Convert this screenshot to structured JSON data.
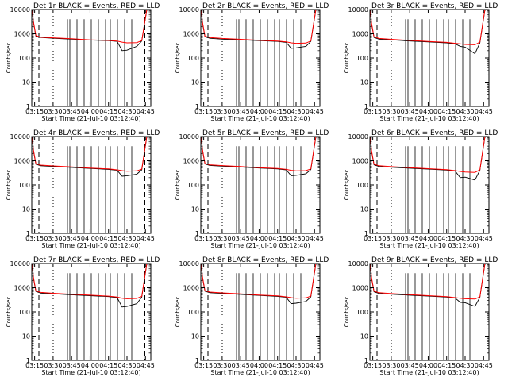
{
  "figure": {
    "background": "#ffffff",
    "axis_color": "#000000"
  },
  "chart_data": [
    {
      "type": "line",
      "title": "Det 1r BLACK = Events, RED = LLD",
      "xlabel": "Start Time (21-Jul-10 03:12:40)",
      "ylabel": "Counts/sec",
      "yscale": "log",
      "ylim": [
        1,
        10000
      ],
      "xlim": [
        "03:12:40",
        "04:49:20"
      ],
      "xticks": [
        "03:15",
        "03:30",
        "03:45",
        "04:00",
        "04:15",
        "04:30",
        "04:45"
      ],
      "yticks": [
        "1",
        "10",
        "100",
        "1000",
        "10000"
      ],
      "series": [
        {
          "color": "#000000",
          "x": [
            "03:13",
            "03:14",
            "03:16",
            "03:20",
            "03:30",
            "03:45",
            "04:00",
            "04:15",
            "04:22",
            "04:26",
            "04:30",
            "04:38",
            "04:42",
            "04:46",
            "04:47"
          ],
          "y": [
            9000,
            3000,
            800,
            700,
            650,
            600,
            550,
            520,
            480,
            200,
            210,
            300,
            500,
            9000,
            10000
          ]
        },
        {
          "color": "#ff0000",
          "x": [
            "03:13",
            "03:14",
            "03:16",
            "03:20",
            "03:30",
            "03:45",
            "04:00",
            "04:15",
            "04:22",
            "04:26",
            "04:30",
            "04:38",
            "04:42",
            "04:46",
            "04:47"
          ],
          "y": [
            9500,
            3200,
            850,
            720,
            680,
            620,
            560,
            530,
            500,
            450,
            420,
            430,
            520,
            9500,
            10000
          ]
        }
      ]
    },
    {
      "type": "line",
      "title": "Det 2r BLACK = Events, RED = LLD",
      "xlabel": "Start Time (21-Jul-10 03:12:40)",
      "ylabel": "Counts/sec",
      "yscale": "log",
      "ylim": [
        1,
        10000
      ],
      "xlim": [
        "03:12:40",
        "04:49:20"
      ],
      "xticks": [
        "03:15",
        "03:30",
        "03:45",
        "04:00",
        "04:15",
        "04:30",
        "04:45"
      ],
      "yticks": [
        "1",
        "10",
        "100",
        "1000",
        "10000"
      ],
      "series": [
        {
          "color": "#000000",
          "x": [
            "03:13",
            "03:14",
            "03:16",
            "03:20",
            "03:30",
            "03:45",
            "04:00",
            "04:15",
            "04:22",
            "04:26",
            "04:30",
            "04:38",
            "04:42",
            "04:46",
            "04:47"
          ],
          "y": [
            9000,
            2800,
            750,
            650,
            600,
            560,
            520,
            480,
            440,
            250,
            260,
            300,
            480,
            9000,
            10000
          ]
        },
        {
          "color": "#ff0000",
          "x": [
            "03:13",
            "03:14",
            "03:16",
            "03:20",
            "03:30",
            "03:45",
            "04:00",
            "04:15",
            "04:22",
            "04:26",
            "04:30",
            "04:38",
            "04:42",
            "04:46",
            "04:47"
          ],
          "y": [
            9500,
            3000,
            800,
            700,
            640,
            590,
            540,
            500,
            460,
            420,
            400,
            410,
            500,
            9500,
            10000
          ]
        }
      ]
    },
    {
      "type": "line",
      "title": "Det 3r BLACK = Events, RED = LLD",
      "xlabel": "Start Time (21-Jul-10 03:12:40)",
      "ylabel": "Counts/sec",
      "yscale": "log",
      "ylim": [
        1,
        10000
      ],
      "xlim": [
        "03:12:40",
        "04:49:20"
      ],
      "xticks": [
        "03:15",
        "03:30",
        "03:45",
        "04:00",
        "04:15",
        "04:30",
        "04:45"
      ],
      "yticks": [
        "1",
        "10",
        "100",
        "1000",
        "10000"
      ],
      "series": [
        {
          "color": "#000000",
          "x": [
            "03:13",
            "03:14",
            "03:16",
            "03:20",
            "03:30",
            "03:45",
            "04:00",
            "04:15",
            "04:22",
            "04:26",
            "04:30",
            "04:38",
            "04:42",
            "04:46",
            "04:47"
          ],
          "y": [
            9000,
            2500,
            700,
            600,
            560,
            500,
            460,
            420,
            380,
            300,
            280,
            150,
            420,
            9000,
            10000
          ]
        },
        {
          "color": "#ff0000",
          "x": [
            "03:13",
            "03:14",
            "03:16",
            "03:20",
            "03:30",
            "03:45",
            "04:00",
            "04:15",
            "04:22",
            "04:26",
            "04:30",
            "04:38",
            "04:42",
            "04:46",
            "04:47"
          ],
          "y": [
            9500,
            2700,
            750,
            640,
            590,
            530,
            480,
            440,
            400,
            380,
            360,
            350,
            450,
            9500,
            10000
          ]
        }
      ]
    },
    {
      "type": "line",
      "title": "Det 4r BLACK = Events, RED = LLD",
      "xlabel": "Start Time (21-Jul-10 03:12:40)",
      "ylabel": "Counts/sec",
      "yscale": "log",
      "ylim": [
        1,
        10000
      ],
      "xlim": [
        "03:12:40",
        "04:49:20"
      ],
      "xticks": [
        "03:15",
        "03:30",
        "03:45",
        "04:00",
        "04:15",
        "04:30",
        "04:45"
      ],
      "yticks": [
        "1",
        "10",
        "100",
        "1000",
        "10000"
      ],
      "series": [
        {
          "color": "#000000",
          "x": [
            "03:13",
            "03:14",
            "03:16",
            "03:20",
            "03:30",
            "03:45",
            "04:00",
            "04:15",
            "04:22",
            "04:26",
            "04:30",
            "04:38",
            "04:42",
            "04:46",
            "04:47"
          ],
          "y": [
            9000,
            2600,
            720,
            620,
            580,
            530,
            480,
            440,
            400,
            230,
            240,
            280,
            420,
            9000,
            10000
          ]
        },
        {
          "color": "#ff0000",
          "x": [
            "03:13",
            "03:14",
            "03:16",
            "03:20",
            "03:30",
            "03:45",
            "04:00",
            "04:15",
            "04:22",
            "04:26",
            "04:30",
            "04:38",
            "04:42",
            "04:46",
            "04:47"
          ],
          "y": [
            9500,
            2800,
            760,
            660,
            610,
            560,
            500,
            460,
            420,
            390,
            370,
            380,
            450,
            9500,
            10000
          ]
        }
      ]
    },
    {
      "type": "line",
      "title": "Det 5r BLACK = Events, RED = LLD",
      "xlabel": "Start Time (21-Jul-10 03:12:40)",
      "ylabel": "Counts/sec",
      "yscale": "log",
      "ylim": [
        1,
        10000
      ],
      "xlim": [
        "03:12:40",
        "04:49:20"
      ],
      "xticks": [
        "03:15",
        "03:30",
        "03:45",
        "04:00",
        "04:15",
        "04:30",
        "04:45"
      ],
      "yticks": [
        "1",
        "10",
        "100",
        "1000",
        "10000"
      ],
      "series": [
        {
          "color": "#000000",
          "x": [
            "03:13",
            "03:14",
            "03:16",
            "03:20",
            "03:30",
            "03:45",
            "04:00",
            "04:15",
            "04:22",
            "04:26",
            "04:30",
            "04:38",
            "04:42",
            "04:46",
            "04:47"
          ],
          "y": [
            9000,
            2700,
            740,
            640,
            600,
            550,
            500,
            460,
            420,
            240,
            250,
            290,
            430,
            9000,
            10000
          ]
        },
        {
          "color": "#ff0000",
          "x": [
            "03:13",
            "03:14",
            "03:16",
            "03:20",
            "03:30",
            "03:45",
            "04:00",
            "04:15",
            "04:22",
            "04:26",
            "04:30",
            "04:38",
            "04:42",
            "04:46",
            "04:47"
          ],
          "y": [
            9500,
            2900,
            780,
            680,
            630,
            580,
            520,
            480,
            440,
            400,
            380,
            390,
            460,
            9500,
            10000
          ]
        }
      ]
    },
    {
      "type": "line",
      "title": "Det 6r BLACK = Events, RED = LLD",
      "xlabel": "Start Time (21-Jul-10 03:12:40)",
      "ylabel": "Counts/sec",
      "yscale": "log",
      "ylim": [
        1,
        10000
      ],
      "xlim": [
        "03:12:40",
        "04:49:20"
      ],
      "xticks": [
        "03:15",
        "03:30",
        "03:45",
        "04:00",
        "04:15",
        "04:30",
        "04:45"
      ],
      "yticks": [
        "1",
        "10",
        "100",
        "1000",
        "10000"
      ],
      "series": [
        {
          "color": "#000000",
          "x": [
            "03:13",
            "03:14",
            "03:16",
            "03:20",
            "03:30",
            "03:45",
            "04:00",
            "04:15",
            "04:22",
            "04:26",
            "04:30",
            "04:38",
            "04:42",
            "04:46",
            "04:47"
          ],
          "y": [
            9000,
            2400,
            680,
            580,
            540,
            490,
            450,
            410,
            370,
            200,
            210,
            160,
            400,
            9000,
            10000
          ]
        },
        {
          "color": "#ff0000",
          "x": [
            "03:13",
            "03:14",
            "03:16",
            "03:20",
            "03:30",
            "03:45",
            "04:00",
            "04:15",
            "04:22",
            "04:26",
            "04:30",
            "04:38",
            "04:42",
            "04:46",
            "04:47"
          ],
          "y": [
            9500,
            2600,
            720,
            620,
            570,
            520,
            470,
            430,
            390,
            360,
            340,
            330,
            420,
            9500,
            10000
          ]
        }
      ]
    },
    {
      "type": "line",
      "title": "Det 7r BLACK = Events, RED = LLD",
      "xlabel": "Start Time (21-Jul-10 03:12:40)",
      "ylabel": "Counts/sec",
      "yscale": "log",
      "ylim": [
        1,
        10000
      ],
      "xlim": [
        "03:12:40",
        "04:49:20"
      ],
      "xticks": [
        "03:15",
        "03:30",
        "03:45",
        "04:00",
        "04:15",
        "04:30",
        "04:45"
      ],
      "yticks": [
        "1",
        "10",
        "100",
        "1000",
        "10000"
      ],
      "series": [
        {
          "color": "#000000",
          "x": [
            "03:13",
            "03:14",
            "03:16",
            "03:20",
            "03:30",
            "03:45",
            "04:00",
            "04:15",
            "04:22",
            "04:26",
            "04:30",
            "04:38",
            "04:42",
            "04:46",
            "04:47"
          ],
          "y": [
            9000,
            2500,
            700,
            600,
            560,
            510,
            470,
            430,
            390,
            160,
            170,
            220,
            410,
            9000,
            10000
          ]
        },
        {
          "color": "#ff0000",
          "x": [
            "03:13",
            "03:14",
            "03:16",
            "03:20",
            "03:30",
            "03:45",
            "04:00",
            "04:15",
            "04:22",
            "04:26",
            "04:30",
            "04:38",
            "04:42",
            "04:46",
            "04:47"
          ],
          "y": [
            9500,
            2700,
            740,
            640,
            590,
            540,
            490,
            450,
            410,
            370,
            350,
            360,
            440,
            9500,
            10000
          ]
        }
      ]
    },
    {
      "type": "line",
      "title": "Det 8r BLACK = Events, RED = LLD",
      "xlabel": "Start Time (21-Jul-10 03:12:40)",
      "ylabel": "Counts/sec",
      "yscale": "log",
      "ylim": [
        1,
        10000
      ],
      "xlim": [
        "03:12:40",
        "04:49:20"
      ],
      "xticks": [
        "03:15",
        "03:30",
        "03:45",
        "04:00",
        "04:15",
        "04:30",
        "04:45"
      ],
      "yticks": [
        "1",
        "10",
        "100",
        "1000",
        "10000"
      ],
      "series": [
        {
          "color": "#000000",
          "x": [
            "03:13",
            "03:14",
            "03:16",
            "03:20",
            "03:30",
            "03:45",
            "04:00",
            "04:15",
            "04:22",
            "04:26",
            "04:30",
            "04:38",
            "04:42",
            "04:46",
            "04:47"
          ],
          "y": [
            9000,
            2600,
            720,
            620,
            580,
            530,
            480,
            440,
            400,
            220,
            230,
            270,
            420,
            9000,
            10000
          ]
        },
        {
          "color": "#ff0000",
          "x": [
            "03:13",
            "03:14",
            "03:16",
            "03:20",
            "03:30",
            "03:45",
            "04:00",
            "04:15",
            "04:22",
            "04:26",
            "04:30",
            "04:38",
            "04:42",
            "04:46",
            "04:47"
          ],
          "y": [
            9500,
            2800,
            760,
            660,
            610,
            560,
            500,
            460,
            420,
            390,
            370,
            380,
            450,
            9500,
            10000
          ]
        }
      ]
    },
    {
      "type": "line",
      "title": "Det 9r BLACK = Events, RED = LLD",
      "xlabel": "Start Time (21-Jul-10 03:12:40)",
      "ylabel": "Counts/sec",
      "yscale": "log",
      "ylim": [
        1,
        10000
      ],
      "xlim": [
        "03:12:40",
        "04:49:20"
      ],
      "xticks": [
        "03:15",
        "03:30",
        "03:45",
        "04:00",
        "04:15",
        "04:30",
        "04:45"
      ],
      "yticks": [
        "1",
        "10",
        "100",
        "1000",
        "10000"
      ],
      "series": [
        {
          "color": "#000000",
          "x": [
            "03:13",
            "03:14",
            "03:16",
            "03:20",
            "03:30",
            "03:45",
            "04:00",
            "04:15",
            "04:22",
            "04:26",
            "04:30",
            "04:38",
            "04:42",
            "04:46",
            "04:47"
          ],
          "y": [
            9000,
            2400,
            680,
            580,
            540,
            490,
            450,
            410,
            370,
            250,
            240,
            170,
            400,
            9000,
            10000
          ]
        },
        {
          "color": "#ff0000",
          "x": [
            "03:13",
            "03:14",
            "03:16",
            "03:20",
            "03:30",
            "03:45",
            "04:00",
            "04:15",
            "04:22",
            "04:26",
            "04:30",
            "04:38",
            "04:42",
            "04:46",
            "04:47"
          ],
          "y": [
            9500,
            2600,
            720,
            620,
            570,
            520,
            470,
            430,
            390,
            370,
            350,
            340,
            420,
            9500,
            10000
          ]
        }
      ]
    }
  ]
}
